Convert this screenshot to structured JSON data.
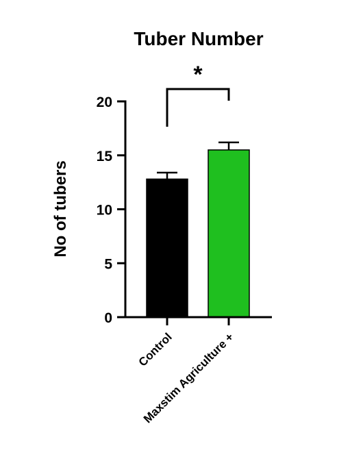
{
  "chart_data": {
    "type": "bar",
    "title": "Tuber Number",
    "ylabel": "No of tubers",
    "xlabel": "",
    "categories": [
      "Control",
      "Maxstim Agriculture +"
    ],
    "values": [
      12.8,
      15.5
    ],
    "error_upper": [
      13.4,
      16.2
    ],
    "colors": [
      "#000000",
      "#1fbf1f"
    ],
    "ylim": [
      0,
      20
    ],
    "yticks": [
      "0",
      "5",
      "10",
      "15",
      "20"
    ],
    "significance": {
      "label": "*",
      "between": [
        "Control",
        "Maxstim Agriculture +"
      ]
    },
    "grid": false,
    "legend": "none"
  }
}
